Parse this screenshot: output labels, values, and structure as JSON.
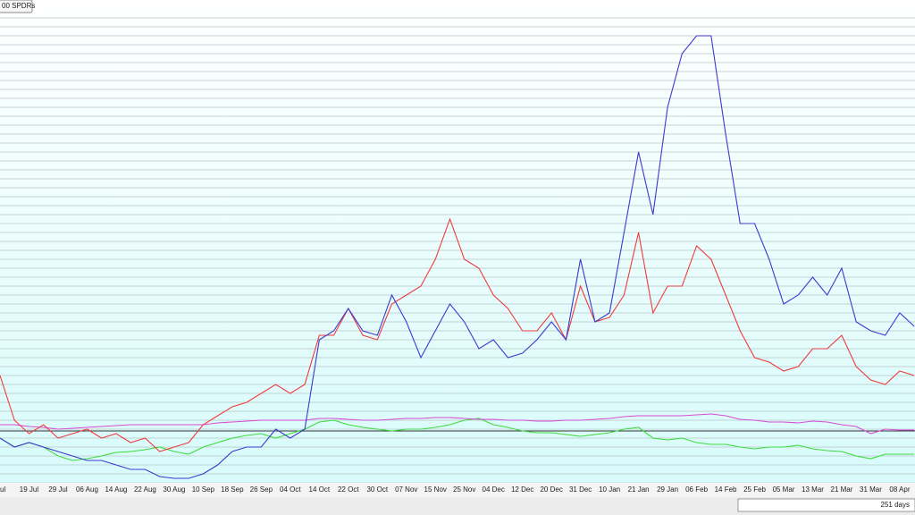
{
  "chart_data": {
    "type": "line",
    "button_label": "00 SPDRs",
    "footer_label": "251 days",
    "categories": [
      "ul",
      null,
      "19 Jul",
      null,
      "29 Jul",
      null,
      "06 Aug",
      null,
      "14 Aug",
      null,
      "22 Aug",
      null,
      "30 Aug",
      null,
      "10 Sep",
      null,
      "18 Sep",
      null,
      "26 Sep",
      null,
      "04 Oct",
      null,
      "14 Oct",
      null,
      "22 Oct",
      null,
      "30 Oct",
      null,
      "07 Nov",
      null,
      "15 Nov",
      null,
      "25 Nov",
      null,
      "04 Dec",
      null,
      "12 Dec",
      null,
      "20 Dec",
      null,
      "31 Dec",
      null,
      "10 Jan",
      null,
      "21 Jan",
      null,
      "29 Jan",
      null,
      "06 Feb",
      null,
      "14 Feb",
      null,
      "25 Feb",
      null,
      "05 Mar",
      null,
      "13 Mar",
      null,
      "21 Mar",
      null,
      "31 Mar",
      null,
      "08 Apr",
      null
    ],
    "series": [
      {
        "color": "#3a3ad0",
        "values": [
          10,
          8,
          9,
          8,
          7,
          6,
          5,
          5,
          4,
          3,
          3,
          1.4,
          1,
          1,
          2,
          4,
          7,
          8,
          8,
          12,
          10,
          12,
          32,
          34,
          39,
          34,
          33,
          42,
          36,
          28,
          34,
          40,
          36,
          30,
          32,
          28,
          29,
          32,
          36,
          32,
          50,
          36,
          38,
          56,
          74,
          60,
          84,
          96,
          100,
          100,
          78,
          58,
          58,
          50,
          40,
          42,
          46,
          42,
          48,
          36,
          34,
          33,
          38,
          35
        ]
      },
      {
        "color": "#ee3b3b",
        "values": [
          24,
          14,
          11,
          13,
          10,
          11,
          12,
          10,
          11,
          9,
          10,
          7,
          8,
          9,
          13,
          15,
          17,
          18,
          20,
          22,
          20,
          22,
          33,
          33,
          39,
          33,
          32,
          40,
          42,
          44,
          50,
          59,
          50,
          48,
          42,
          39,
          34,
          34,
          38,
          32,
          44,
          36,
          37,
          42,
          56,
          38,
          44,
          44,
          53,
          50,
          42,
          34,
          28,
          27,
          25,
          26,
          30,
          30,
          33,
          26,
          23,
          22,
          25,
          24
        ]
      },
      {
        "color": "#d94ad9",
        "values": [
          13,
          13,
          12.6,
          12.4,
          12,
          12.2,
          12.4,
          12.6,
          12.8,
          13,
          13,
          13,
          13,
          13,
          13,
          13.4,
          13.6,
          13.8,
          14,
          14,
          14,
          14,
          14.4,
          14.4,
          14.2,
          14,
          14,
          14.2,
          14.4,
          14.4,
          14.6,
          14.6,
          14.4,
          14.2,
          14.2,
          14,
          14,
          13.8,
          13.8,
          14,
          14,
          14.2,
          14.4,
          14.8,
          15,
          15,
          15,
          15,
          15.2,
          15.4,
          15,
          14.2,
          14,
          13.6,
          13.6,
          13.4,
          13.8,
          13.6,
          13,
          12.6,
          11,
          12,
          11.8,
          11.8
        ]
      },
      {
        "color": "#3edc3e",
        "values": [
          10,
          8,
          9,
          8,
          6,
          5,
          5.4,
          6,
          6.8,
          7,
          7.4,
          8,
          7,
          6.4,
          8,
          9,
          10,
          10.6,
          11,
          10,
          11,
          12,
          13.6,
          14,
          13,
          12.4,
          12,
          11.6,
          12,
          12,
          12.4,
          13,
          14,
          14.4,
          13,
          12.4,
          11.6,
          11.2,
          11.2,
          10.8,
          10.4,
          10.8,
          11.2,
          12,
          12.4,
          10,
          9.6,
          10,
          9,
          8.6,
          8.6,
          8,
          7.6,
          8,
          8,
          8.4,
          7.6,
          7.2,
          7,
          6,
          5.4,
          6.4,
          6.4,
          6.4
        ]
      }
    ],
    "reference_line": 11.6,
    "reference_color": "#333333",
    "ylim": [
      0,
      104
    ],
    "yticks": [
      0,
      2,
      4,
      6,
      8,
      10,
      12,
      14,
      16,
      18,
      20,
      22,
      24,
      26,
      28,
      30,
      32,
      34,
      36,
      38,
      40,
      42,
      44,
      46,
      48,
      50,
      52,
      54,
      56,
      58,
      60,
      62,
      64,
      66,
      68,
      70,
      72,
      74,
      76,
      78,
      80,
      82,
      84,
      86,
      88,
      90,
      92,
      94,
      96,
      98,
      100,
      102,
      104
    ],
    "grid": true
  }
}
